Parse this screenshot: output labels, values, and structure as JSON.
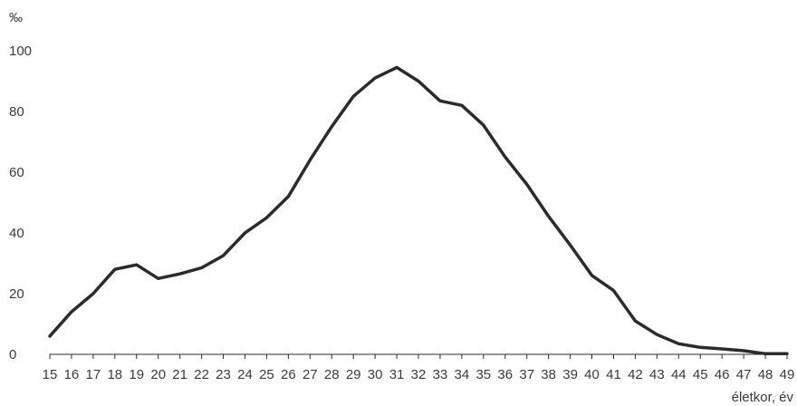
{
  "chart_data": {
    "type": "line",
    "title": "",
    "ylabel": "‰",
    "xlabel": "életkor, év",
    "ylim": [
      0,
      100
    ],
    "yticks": [
      0,
      20,
      40,
      60,
      80,
      100
    ],
    "grid": false,
    "line_color": "#2b2b2b",
    "x": [
      15,
      16,
      17,
      18,
      19,
      20,
      21,
      22,
      23,
      24,
      25,
      26,
      27,
      28,
      29,
      30,
      31,
      32,
      33,
      34,
      35,
      36,
      37,
      38,
      39,
      40,
      41,
      42,
      43,
      44,
      45,
      46,
      47,
      48,
      49
    ],
    "series": [
      {
        "values": [
          6,
          14,
          20,
          28,
          29.5,
          25,
          26.5,
          28.5,
          32.5,
          40,
          45,
          52,
          64,
          75,
          85,
          91,
          94.5,
          90,
          83.5,
          82,
          75.5,
          65,
          56,
          45.5,
          36,
          26,
          21,
          11,
          6.5,
          3.5,
          2.3,
          1.8,
          1.2,
          0.2,
          0.2
        ]
      }
    ]
  }
}
